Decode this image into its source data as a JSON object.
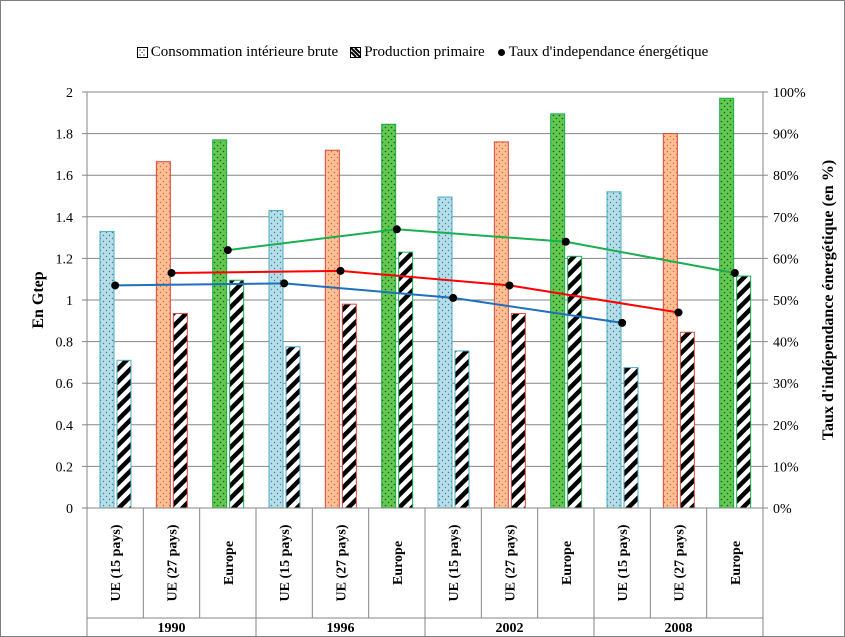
{
  "chart_data": {
    "type": "bar",
    "groups": [
      "1990",
      "1996",
      "2002",
      "2008"
    ],
    "categories": [
      "UE (15 pays)",
      "UE (27 pays)",
      "Europe"
    ],
    "bar_series": [
      {
        "name": "Consommation intérieure brute",
        "values": {
          "1990": [
            1.33,
            1.665,
            1.77
          ],
          "1996": [
            1.43,
            1.72,
            1.845
          ],
          "2002": [
            1.495,
            1.76,
            1.895
          ],
          "2008": [
            1.52,
            1.8,
            1.97
          ]
        }
      },
      {
        "name": "Production primaire",
        "values": {
          "1990": [
            0.71,
            0.935,
            1.095
          ],
          "1996": [
            0.775,
            0.98,
            1.23
          ],
          "2002": [
            0.755,
            0.935,
            1.21
          ],
          "2008": [
            0.675,
            0.845,
            1.115
          ]
        }
      }
    ],
    "line_series": {
      "name": "Taux d'independance énergétique",
      "values": {
        "UE (15 pays)": [
          53.5,
          54,
          50.5,
          44.5
        ],
        "UE (27 pays)": [
          56.5,
          57,
          53.5,
          47
        ],
        "Europe": [
          62,
          67,
          64,
          56.5
        ]
      }
    },
    "ylabel": "En Gtep",
    "y2label": "Taux d'indépendance énergétique (en %)",
    "ylim": [
      0,
      2
    ],
    "yticks": [
      "0",
      "0.2",
      "0.4",
      "0.6",
      "0.8",
      "1",
      "1.2",
      "1.4",
      "1.6",
      "1.8",
      "2"
    ],
    "y2lim": [
      0,
      100
    ],
    "y2ticks": [
      "0%",
      "10%",
      "20%",
      "30%",
      "40%",
      "50%",
      "60%",
      "70%",
      "80%",
      "90%",
      "100%"
    ],
    "grid": true,
    "legend_position": "top",
    "colors": {
      "UE (15 pays)": "#b7dde8",
      "UE (27 pays)": "#fbbf9a",
      "Europe": "#63c850",
      "line_UE (15 pays)": "#1f6fbf",
      "line_UE (27 pays)": "#ff0000",
      "line_Europe": "#1aaf50"
    }
  }
}
